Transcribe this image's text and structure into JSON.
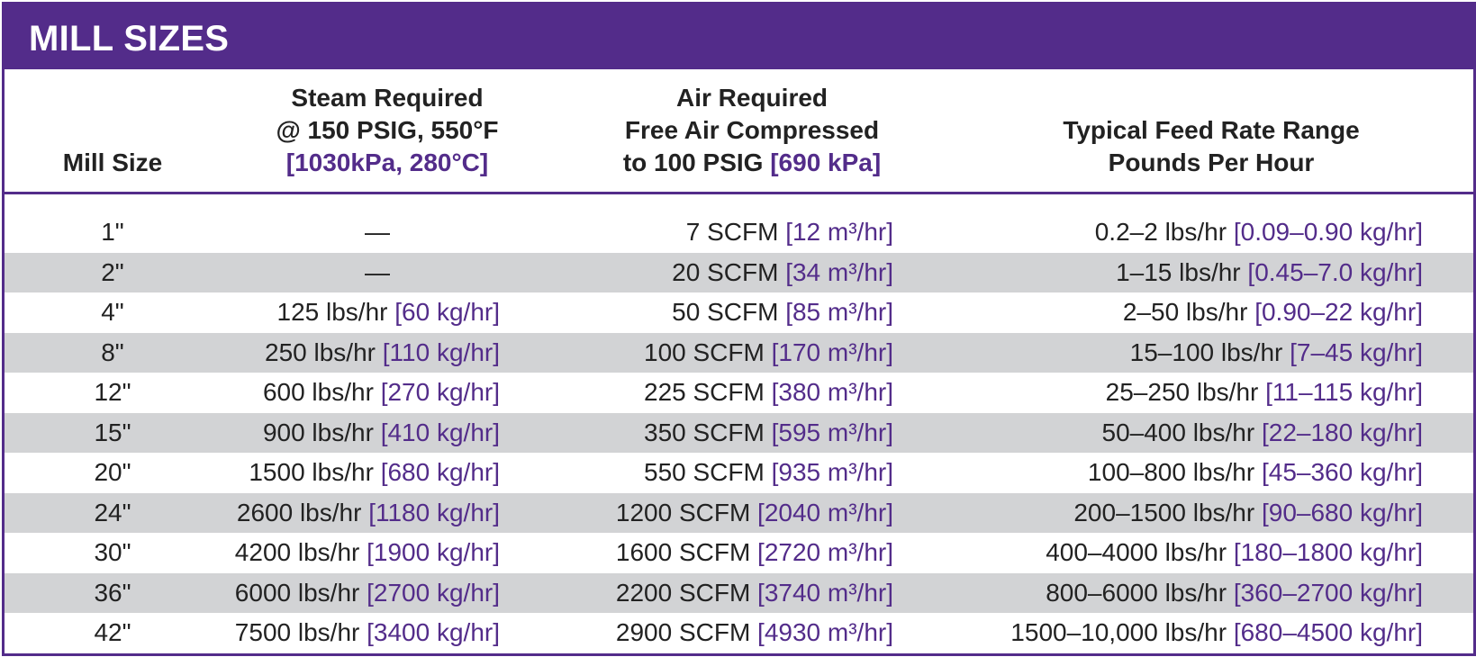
{
  "title": "MILL SIZES",
  "headers": {
    "mill_size": "Mill Size",
    "steam_line1": "Steam Required",
    "steam_line2": "@ 150 PSIG, 550°F",
    "steam_line3": "[1030kPa, 280°C]",
    "air_line1": "Air Required",
    "air_line2": "Free Air Compressed",
    "air_line3_a": "to 100 PSIG ",
    "air_line3_b": "[690 kPa]",
    "feed_line1": "Typical Feed Rate Range",
    "feed_line2": "Pounds Per Hour"
  },
  "rows": [
    {
      "size": "1\"",
      "steam": "—",
      "steam_metric": "",
      "air": "7 SCFM ",
      "air_metric": "[12 m³/hr]",
      "feed": "0.2–2 lbs/hr ",
      "feed_metric": "[0.09–0.90 kg/hr]"
    },
    {
      "size": "2\"",
      "steam": "—",
      "steam_metric": "",
      "air": "20 SCFM ",
      "air_metric": "[34 m³/hr]",
      "feed": "1–15 lbs/hr ",
      "feed_metric": "[0.45–7.0 kg/hr]"
    },
    {
      "size": "4\"",
      "steam": "125 lbs/hr ",
      "steam_metric": "[60 kg/hr]",
      "air": "50 SCFM ",
      "air_metric": "[85 m³/hr]",
      "feed": "2–50 lbs/hr ",
      "feed_metric": "[0.90–22 kg/hr]"
    },
    {
      "size": "8\"",
      "steam": "250 lbs/hr ",
      "steam_metric": "[110 kg/hr]",
      "air": "100 SCFM ",
      "air_metric": "[170 m³/hr]",
      "feed": "15–100 lbs/hr ",
      "feed_metric": "[7–45 kg/hr]"
    },
    {
      "size": "12\"",
      "steam": "600 lbs/hr ",
      "steam_metric": "[270 kg/hr]",
      "air": "225 SCFM ",
      "air_metric": "[380 m³/hr]",
      "feed": "25–250 lbs/hr ",
      "feed_metric": "[11–115 kg/hr]"
    },
    {
      "size": "15\"",
      "steam": "900 lbs/hr ",
      "steam_metric": "[410 kg/hr]",
      "air": "350 SCFM ",
      "air_metric": "[595 m³/hr]",
      "feed": "50–400 lbs/hr ",
      "feed_metric": "[22–180 kg/hr]"
    },
    {
      "size": "20\"",
      "steam": "1500 lbs/hr ",
      "steam_metric": "[680 kg/hr]",
      "air": "550 SCFM ",
      "air_metric": "[935 m³/hr]",
      "feed": "100–800 lbs/hr ",
      "feed_metric": "[45–360 kg/hr]"
    },
    {
      "size": "24\"",
      "steam": "2600 lbs/hr ",
      "steam_metric": "[1180 kg/hr]",
      "air": "1200 SCFM ",
      "air_metric": "[2040 m³/hr]",
      "feed": "200–1500 lbs/hr ",
      "feed_metric": "[90–680 kg/hr]"
    },
    {
      "size": "30\"",
      "steam": "4200 lbs/hr ",
      "steam_metric": "[1900 kg/hr]",
      "air": "1600 SCFM ",
      "air_metric": "[2720 m³/hr]",
      "feed": "400–4000 lbs/hr ",
      "feed_metric": "[180–1800 kg/hr]"
    },
    {
      "size": "36\"",
      "steam": "6000 lbs/hr ",
      "steam_metric": "[2700 kg/hr]",
      "air": "2200 SCFM ",
      "air_metric": "[3740 m³/hr]",
      "feed": "800–6000 lbs/hr ",
      "feed_metric": "[360–2700 kg/hr]"
    },
    {
      "size": "42\"",
      "steam": "7500 lbs/hr ",
      "steam_metric": "[3400 kg/hr]",
      "air": "2900 SCFM ",
      "air_metric": "[4930 m³/hr]",
      "feed": "1500–10,000 lbs/hr ",
      "feed_metric": "[680–4500 kg/hr]"
    }
  ],
  "colors": {
    "accent": "#532c8a",
    "row_shade": "#d2d3d5",
    "text": "#222222"
  }
}
